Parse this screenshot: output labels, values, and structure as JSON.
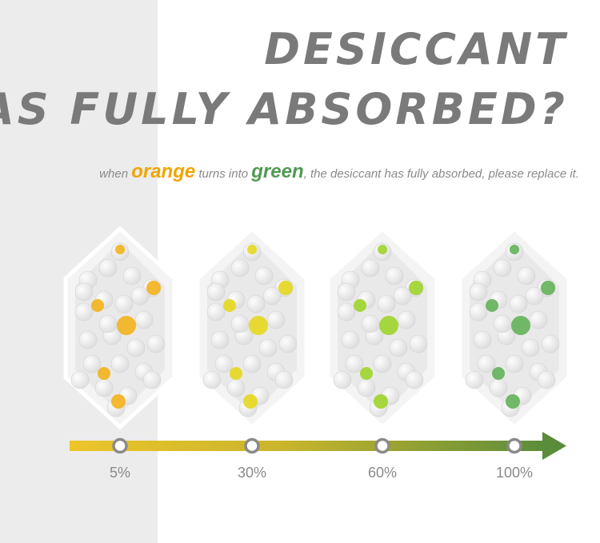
{
  "header": {
    "title_lines": [
      "DESICCANT",
      "HAS FULLY ABSORBED?"
    ]
  },
  "subtitle": {
    "parts": [
      "when ",
      "orange",
      " turns into ",
      "green",
      ", the desiccant has fully absorbed, please replace it."
    ]
  },
  "stages": [
    "5%",
    "30%",
    "60%",
    "100%"
  ]
}
